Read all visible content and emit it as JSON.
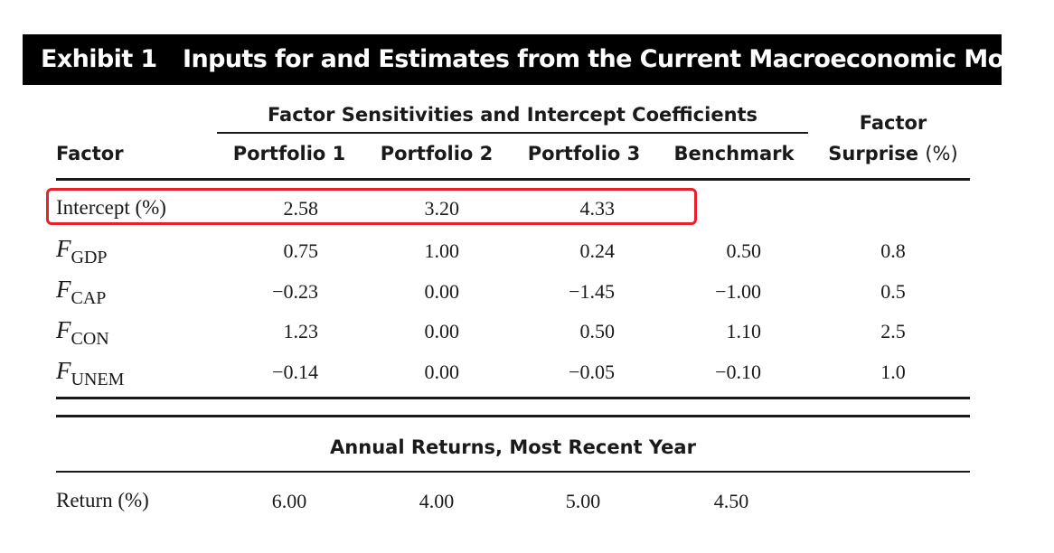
{
  "exhibit": {
    "number": "Exhibit 1",
    "title": "Inputs for and Estimates from the Current Macroeconomic Model"
  },
  "headers": {
    "group": "Factor Sensitivities and Intercept Coefficients",
    "factor": "Factor",
    "columns": [
      "Portfolio 1",
      "Portfolio 2",
      "Portfolio 3",
      "Benchmark"
    ],
    "surprise_line1": "Factor",
    "surprise_line2": "Surprise",
    "surprise_unit": "(%)"
  },
  "rows": [
    {
      "label": "Intercept (%)",
      "values": [
        "2.58",
        "3.20",
        "4.33",
        ""
      ],
      "surprise": ""
    },
    {
      "label_main": "F",
      "label_sub": "GDP",
      "values": [
        "0.75",
        "1.00",
        "0.24",
        "0.50"
      ],
      "surprise": "0.8"
    },
    {
      "label_main": "F",
      "label_sub": "CAP",
      "values": [
        "−0.23",
        "0.00",
        "−1.45",
        "−1.00"
      ],
      "surprise": "0.5"
    },
    {
      "label_main": "F",
      "label_sub": "CON",
      "values": [
        "1.23",
        "0.00",
        "0.50",
        "1.10"
      ],
      "surprise": "2.5"
    },
    {
      "label_main": "F",
      "label_sub": "UNEM",
      "values": [
        "−0.14",
        "0.00",
        "−0.05",
        "−0.10"
      ],
      "surprise": "1.0"
    }
  ],
  "returns": {
    "heading": "Annual Returns, Most Recent Year",
    "label": "Return (%)",
    "values": [
      "6.00",
      "4.00",
      "5.00",
      "4.50"
    ]
  },
  "highlight_color": "#e8202a"
}
